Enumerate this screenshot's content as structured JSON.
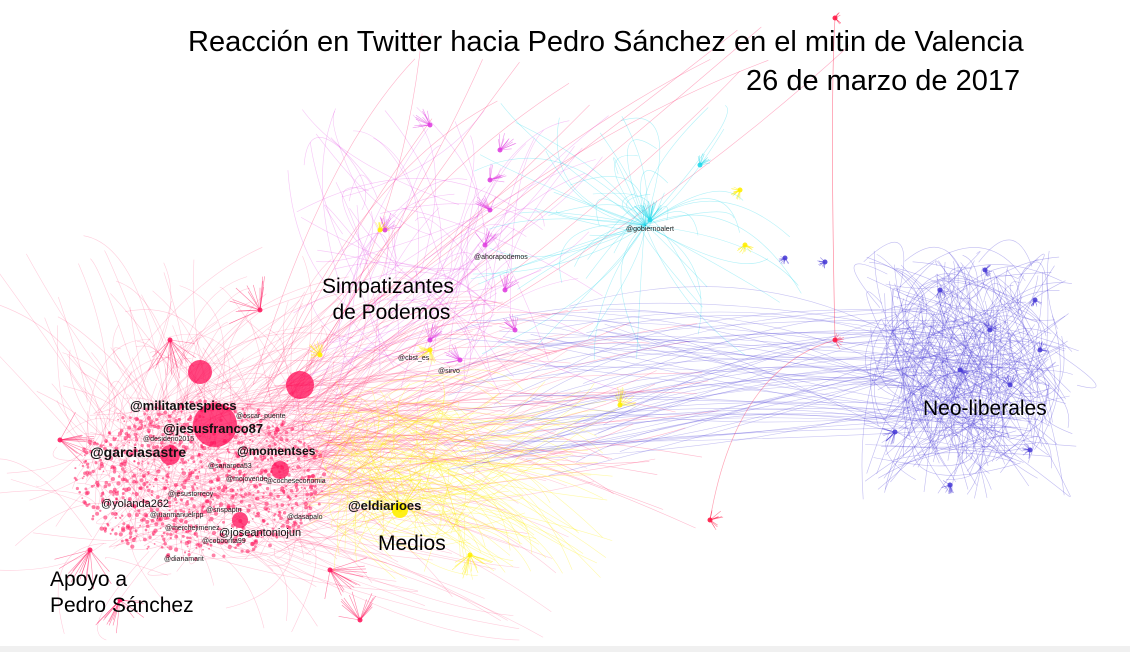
{
  "title": "Reacción en Twitter hacia Pedro Sánchez en el mitin de Valencia",
  "subtitle": "26 de marzo de 2017",
  "clusters": {
    "podemos": {
      "line1": "Simpatizantes",
      "line2": "de Podemos",
      "color": "#e040e0"
    },
    "apoyo": {
      "line1": "Apoyo a",
      "line2": "Pedro Sánchez",
      "color": "#ff1a5e"
    },
    "medios": {
      "line1": "Medios",
      "color": "#ffee00"
    },
    "neoliberales": {
      "line1": "Neo-liberales",
      "color": "#4a3dd6"
    },
    "gobierno": {
      "color": "#22d8ea"
    }
  },
  "handles": {
    "militantespiecs": "@militantespiecs",
    "jesusfranco87": "@jesusfranco87",
    "garciasastre": "@garciasastre",
    "momentses": "@momentses",
    "eldiarioes": "@eldiarioes",
    "yolanda262": "@yolanda262",
    "joseantoniojun": "@joseantoniojun",
    "desiderio2015": "@desiderio2015",
    "oscar_puente": "@oscar_puente",
    "gobiernoalerta": "@gobiernoalert",
    "cbst_es": "@cbst_es",
    "ahoraespodemos": "@ahorapodemos",
    "sirvo": "@sirvo",
    "sanandres": "@sanaroca53",
    "mojovende": "@mojovende",
    "cocheseco": "@cocheseconomia",
    "srispaptn": "@srispaptn",
    "merchejimenez": "@merchejimenez",
    "coboo": "@coboorita99",
    "dianamarit": "@dianamarit",
    "jesustorres": "@jesustorreoy",
    "juanmanuel": "@juanmanuelrpp",
    "dasapalo": "@dasapalo"
  }
}
